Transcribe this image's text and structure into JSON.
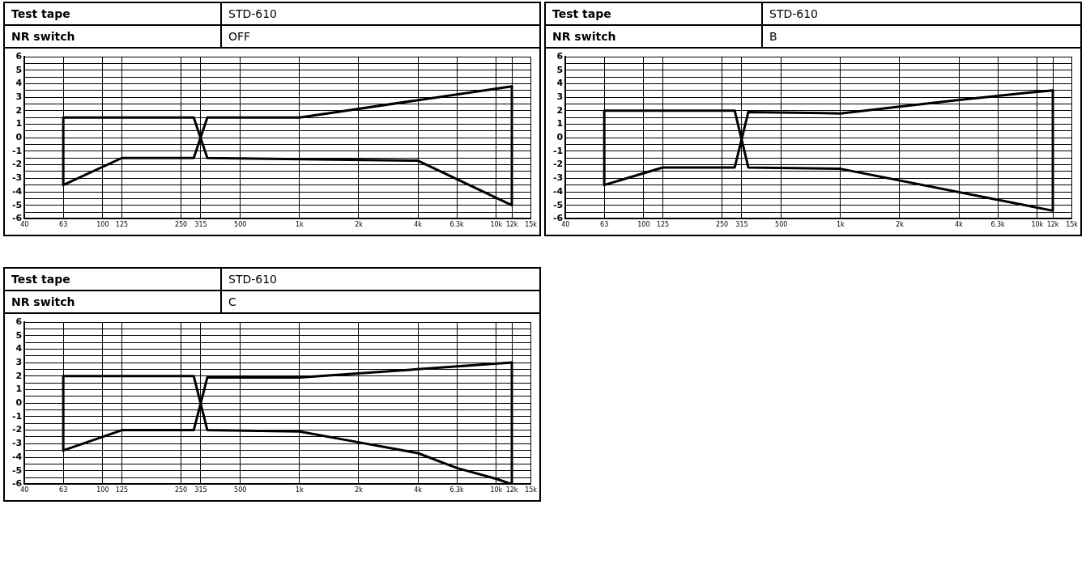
{
  "chart_data": [
    {
      "type": "line",
      "annotations": [
        "Test tape",
        "STD-610",
        "NR switch",
        "OFF"
      ],
      "xlim": [
        40,
        15000
      ],
      "ylim": [
        -6,
        6
      ],
      "log": "x",
      "grid": true,
      "legend": false,
      "marker": "none",
      "line_style": "solid",
      "xticks": [
        40,
        63,
        100,
        125,
        250,
        315,
        500,
        {
          "value": 1000,
          "label": "1k"
        },
        {
          "value": 2000,
          "label": "2k"
        },
        {
          "value": 4000,
          "label": "4k"
        },
        {
          "value": 6300,
          "label": "6.3k"
        },
        {
          "value": 10000,
          "label": "10k"
        },
        {
          "value": 12000,
          "label": "12k"
        },
        {
          "value": 15000,
          "label": "15k"
        }
      ],
      "yticks": [
        -6,
        {
          "value": -5.5,
          "label": null
        },
        -5,
        {
          "value": -4.5,
          "label": null
        },
        -4,
        {
          "value": -3.5,
          "label": null
        },
        -3,
        {
          "value": -2.5,
          "label": null
        },
        -2,
        {
          "value": -1.5,
          "label": null
        },
        -1,
        {
          "value": -0.5,
          "label": null
        },
        0,
        {
          "value": 0.5,
          "label": null
        },
        1,
        {
          "value": 1.5,
          "label": null
        },
        2,
        {
          "value": 2.5,
          "label": null
        },
        3,
        {
          "value": 3.5,
          "label": null
        },
        4,
        {
          "value": 4.5,
          "label": null
        },
        5,
        {
          "value": 5.5,
          "label": null
        },
        6
      ],
      "series": [
        {
          "color": "#000000",
          "x": [
            63,
            63,
            290,
            340,
            4000,
            12000,
            12000
          ],
          "values": [
            -3.5,
            1.5,
            1.5,
            -1.5,
            -1.7,
            -5,
            3.8
          ]
        },
        {
          "color": "#000000",
          "x": [
            63,
            125,
            290,
            340,
            1000,
            12000
          ],
          "values": [
            -3.5,
            -1.5,
            -1.5,
            1.5,
            1.5,
            3.8
          ]
        }
      ]
    },
    {
      "type": "line",
      "annotations": [
        "Test tape",
        "STD-610",
        "NR switch",
        "B"
      ],
      "xlim": [
        40,
        15000
      ],
      "ylim": [
        -6,
        6
      ],
      "log": "x",
      "grid": true,
      "legend": false,
      "marker": "none",
      "line_style": "solid",
      "xticks": [
        40,
        63,
        100,
        125,
        250,
        315,
        500,
        {
          "value": 1000,
          "label": "1k"
        },
        {
          "value": 2000,
          "label": "2k"
        },
        {
          "value": 4000,
          "label": "4k"
        },
        {
          "value": 6300,
          "label": "6.3k"
        },
        {
          "value": 10000,
          "label": "10k"
        },
        {
          "value": 12000,
          "label": "12k"
        },
        {
          "value": 15000,
          "label": "15k"
        }
      ],
      "yticks": [
        -6,
        {
          "value": -5.5,
          "label": null
        },
        -5,
        {
          "value": -4.5,
          "label": null
        },
        -4,
        {
          "value": -3.5,
          "label": null
        },
        -3,
        {
          "value": -2.5,
          "label": null
        },
        -2,
        {
          "value": -1.5,
          "label": null
        },
        -1,
        {
          "value": -0.5,
          "label": null
        },
        0,
        {
          "value": 0.5,
          "label": null
        },
        1,
        {
          "value": 1.5,
          "label": null
        },
        2,
        {
          "value": 2.5,
          "label": null
        },
        3,
        {
          "value": 3.5,
          "label": null
        },
        4,
        {
          "value": 4.5,
          "label": null
        },
        5,
        {
          "value": 5.5,
          "label": null
        },
        6
      ],
      "series": [
        {
          "color": "#000000",
          "x": [
            63,
            63,
            290,
            340,
            1000,
            12000,
            12000
          ],
          "values": [
            -3.5,
            2,
            2,
            -2.2,
            -2.3,
            -5.4,
            3.5
          ]
        },
        {
          "color": "#000000",
          "x": [
            63,
            125,
            290,
            340,
            1000,
            2000,
            4000,
            6300,
            10000,
            12000
          ],
          "values": [
            -3.5,
            -2.2,
            -2.2,
            1.9,
            1.8,
            2.3,
            2.8,
            3.1,
            3.4,
            3.5
          ]
        }
      ]
    },
    {
      "type": "line",
      "annotations": [
        "Test tape",
        "STD-610",
        "NR switch",
        "C"
      ],
      "xlim": [
        40,
        15000
      ],
      "ylim": [
        -6,
        6
      ],
      "log": "x",
      "grid": true,
      "legend": false,
      "marker": "none",
      "line_style": "solid",
      "xticks": [
        40,
        63,
        100,
        125,
        250,
        315,
        500,
        {
          "value": 1000,
          "label": "1k"
        },
        {
          "value": 2000,
          "label": "2k"
        },
        {
          "value": 4000,
          "label": "4k"
        },
        {
          "value": 6300,
          "label": "6.3k"
        },
        {
          "value": 10000,
          "label": "10k"
        },
        {
          "value": 12000,
          "label": "12k"
        },
        {
          "value": 15000,
          "label": "15k"
        }
      ],
      "yticks": [
        -6,
        {
          "value": -5.5,
          "label": null
        },
        -5,
        {
          "value": -4.5,
          "label": null
        },
        -4,
        {
          "value": -3.5,
          "label": null
        },
        -3,
        {
          "value": -2.5,
          "label": null
        },
        -2,
        {
          "value": -1.5,
          "label": null
        },
        -1,
        {
          "value": -0.5,
          "label": null
        },
        0,
        {
          "value": 0.5,
          "label": null
        },
        1,
        {
          "value": 1.5,
          "label": null
        },
        2,
        {
          "value": 2.5,
          "label": null
        },
        3,
        {
          "value": 3.5,
          "label": null
        },
        4,
        {
          "value": 4.5,
          "label": null
        },
        5,
        {
          "value": 5.5,
          "label": null
        },
        6
      ],
      "series": [
        {
          "color": "#000000",
          "x": [
            63,
            63,
            290,
            340,
            1000,
            2000,
            4000,
            6300,
            10000,
            12000,
            12000
          ],
          "values": [
            -3.5,
            2,
            2,
            -2.0,
            -2.1,
            -2.9,
            -3.7,
            -4.8,
            -5.6,
            -6,
            3.0
          ]
        },
        {
          "color": "#000000",
          "x": [
            63,
            125,
            290,
            340,
            1000,
            12000
          ],
          "values": [
            -3.5,
            -2.0,
            -2.0,
            1.9,
            1.9,
            3.0
          ]
        }
      ]
    }
  ]
}
